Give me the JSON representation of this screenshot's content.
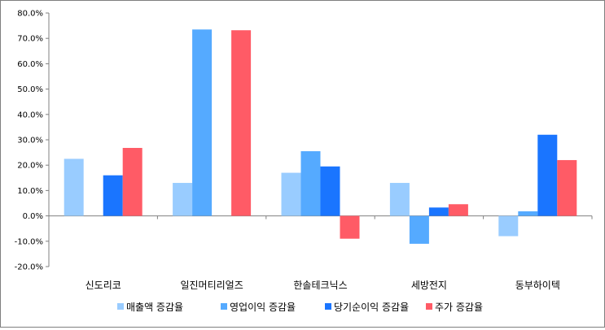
{
  "chart_data": {
    "type": "bar",
    "title": "",
    "xlabel": "",
    "ylabel": "",
    "ylim": [
      -20,
      80
    ],
    "y_ticks": [
      "80.0%",
      "70.0%",
      "60.0%",
      "50.0%",
      "40.0%",
      "30.0%",
      "20.0%",
      "10.0%",
      "0.0%",
      "-10.0%",
      "-20.0%"
    ],
    "y_tick_values": [
      80,
      70,
      60,
      50,
      40,
      30,
      20,
      10,
      0,
      -10,
      -20
    ],
    "categories": [
      "신도리코",
      "일진머티리얼즈",
      "한솔테크닉스",
      "세방전지",
      "동부하이텍"
    ],
    "series": [
      {
        "name": "매출액 증감율",
        "color": "#99ccff",
        "values": [
          22.5,
          13.0,
          17.0,
          13.0,
          -8.0
        ]
      },
      {
        "name": "영업이익 증감율",
        "color": "#55aaff",
        "values": [
          null,
          73.5,
          25.5,
          -11.0,
          1.8
        ]
      },
      {
        "name": "당기순이익 증감율",
        "color": "#1a75ff",
        "values": [
          16.0,
          null,
          19.5,
          3.3,
          32.0
        ]
      },
      {
        "name": "주가 증감율",
        "color": "#ff5b66",
        "values": [
          26.8,
          73.2,
          -9.0,
          4.6,
          22.0
        ]
      }
    ],
    "grid": false,
    "legend_position": "bottom"
  }
}
